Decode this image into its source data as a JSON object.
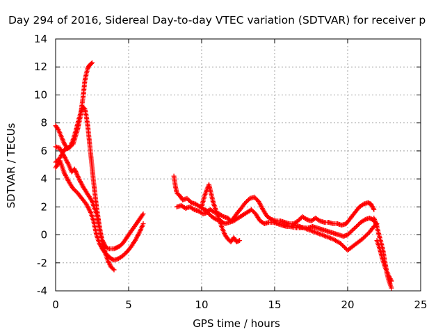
{
  "chart_data": {
    "type": "scatter",
    "title": "Day 294 of 2016, Sidereal Day-to-day VTEC variation (SDTVAR) for receiver p",
    "xlabel": "GPS time / hours",
    "ylabel": "SDTVAR / TECUs",
    "xlim": [
      0,
      25
    ],
    "ylim": [
      -4,
      14
    ],
    "xticks": [
      "0",
      "5",
      "10",
      "15",
      "20",
      "25"
    ],
    "yticks": [
      "-4",
      "-2",
      "0",
      "2",
      "4",
      "6",
      "8",
      "10",
      "12",
      "14"
    ],
    "grid": true,
    "legend": "none",
    "marker": "plus",
    "color": "#ff0000",
    "series": [
      {
        "x": [
          0.0,
          0.3,
          0.6,
          0.9,
          1.2,
          1.5,
          1.7,
          1.9,
          2.0,
          2.1,
          2.2,
          2.3,
          2.4,
          2.5
        ],
        "y": [
          5.2,
          5.5,
          6.1,
          6.2,
          6.5,
          7.5,
          8.5,
          10.0,
          11.0,
          11.5,
          11.9,
          12.1,
          12.2,
          12.3
        ]
      },
      {
        "x": [
          0.0,
          0.2,
          0.4,
          0.6,
          0.8,
          1.0,
          1.2,
          1.4,
          1.6,
          1.8,
          1.9,
          2.0,
          2.1,
          2.2,
          2.3,
          2.4,
          2.5,
          2.6,
          2.7,
          2.8,
          2.9,
          3.0,
          3.1,
          3.2,
          3.4,
          3.6,
          3.8,
          4.0,
          4.2,
          4.4,
          4.6,
          4.8,
          5.0,
          5.2,
          5.4,
          5.6,
          5.8,
          6.0
        ],
        "y": [
          7.8,
          7.5,
          7.0,
          6.5,
          6.2,
          6.3,
          6.8,
          7.5,
          8.3,
          9.0,
          9.1,
          9.0,
          8.5,
          7.8,
          6.8,
          5.8,
          4.8,
          3.8,
          2.9,
          2.0,
          1.3,
          0.6,
          0.0,
          -0.4,
          -0.8,
          -1.0,
          -1.0,
          -1.0,
          -0.9,
          -0.8,
          -0.6,
          -0.3,
          0.0,
          0.3,
          0.6,
          0.9,
          1.2,
          1.5
        ]
      },
      {
        "x": [
          0.0,
          0.3,
          0.6,
          0.9,
          1.1,
          1.3,
          1.6,
          1.9,
          2.2,
          2.5,
          2.8,
          3.0,
          3.2,
          3.4,
          3.6,
          3.8,
          4.0
        ],
        "y": [
          6.3,
          6.2,
          5.6,
          5.0,
          4.5,
          4.7,
          4.0,
          3.4,
          2.9,
          2.4,
          1.5,
          0.5,
          -0.5,
          -1.3,
          -1.9,
          -2.3,
          -2.5
        ]
      },
      {
        "x": [
          0.0,
          0.3,
          0.6,
          0.9,
          1.2,
          1.5,
          1.8,
          2.1,
          2.4,
          2.6,
          2.8,
          3.0,
          3.2,
          3.4,
          3.6,
          3.8,
          4.0,
          4.3,
          4.6,
          4.9,
          5.2,
          5.5,
          5.8,
          6.0
        ],
        "y": [
          4.8,
          5.3,
          4.4,
          3.8,
          3.3,
          3.0,
          2.6,
          2.2,
          1.6,
          1.0,
          0.0,
          -0.6,
          -1.0,
          -1.3,
          -1.5,
          -1.7,
          -1.8,
          -1.7,
          -1.5,
          -1.2,
          -0.8,
          -0.3,
          0.3,
          0.8
        ]
      },
      {
        "x": [
          8.1,
          8.2,
          8.3,
          8.5,
          8.7,
          9.0,
          9.3,
          9.6,
          9.9,
          10.2,
          10.4,
          10.6,
          10.9,
          11.2,
          11.5,
          11.8,
          12.0,
          12.2,
          12.4,
          12.7,
          13.0,
          13.3,
          13.6,
          13.9,
          14.2,
          14.5,
          14.8,
          15.1,
          15.4,
          15.7,
          16.0,
          16.3,
          16.6,
          16.9,
          17.2,
          17.5,
          17.8,
          18.1,
          18.4,
          18.7,
          19.0,
          19.3,
          19.6,
          19.9,
          20.2,
          20.5,
          20.8,
          21.1,
          21.4,
          21.6,
          21.8
        ],
        "y": [
          4.2,
          3.5,
          3.0,
          2.8,
          2.5,
          2.6,
          2.3,
          2.2,
          2.0,
          1.8,
          1.7,
          1.8,
          1.6,
          1.5,
          1.3,
          1.2,
          1.0,
          1.2,
          1.5,
          1.9,
          2.3,
          2.6,
          2.7,
          2.4,
          1.8,
          1.3,
          1.1,
          1.0,
          1.0,
          0.9,
          0.8,
          0.8,
          1.0,
          1.3,
          1.1,
          1.0,
          1.2,
          1.0,
          0.9,
          0.9,
          0.8,
          0.8,
          0.7,
          0.8,
          1.2,
          1.6,
          2.0,
          2.2,
          2.3,
          2.2,
          1.8
        ]
      },
      {
        "x": [
          8.3,
          8.6,
          8.9,
          9.2,
          9.5,
          9.8,
          10.1,
          10.4,
          10.7,
          11.0,
          11.3,
          11.6,
          11.9,
          12.2,
          12.5,
          12.8,
          13.1,
          13.4,
          13.7,
          14.0,
          14.3,
          14.6,
          14.9,
          15.2,
          15.5,
          15.8,
          16.1,
          16.4,
          16.7,
          17.0,
          17.3,
          17.6,
          17.9,
          18.2,
          18.5,
          18.8,
          19.1,
          19.4,
          19.7,
          20.0,
          20.3,
          20.6,
          20.9,
          21.2,
          21.5,
          21.7,
          21.9,
          22.0
        ],
        "y": [
          2.0,
          2.1,
          1.9,
          2.0,
          1.8,
          1.7,
          1.5,
          1.6,
          1.3,
          1.1,
          1.0,
          0.8,
          0.9,
          1.0,
          1.2,
          1.4,
          1.6,
          1.8,
          1.5,
          1.0,
          0.8,
          0.9,
          0.9,
          0.8,
          0.7,
          0.6,
          0.6,
          0.7,
          0.6,
          0.5,
          0.5,
          0.6,
          0.5,
          0.4,
          0.3,
          0.2,
          0.1,
          0.0,
          -0.1,
          0.0,
          0.3,
          0.6,
          0.9,
          1.1,
          1.2,
          1.1,
          0.9,
          0.7
        ]
      },
      {
        "x": [
          10.0,
          10.2,
          10.5,
          10.8,
          11.1,
          11.4,
          11.6,
          11.8,
          12.0,
          12.2,
          12.4,
          12.6
        ],
        "y": [
          2.0,
          2.8,
          3.6,
          2.3,
          1.4,
          0.5,
          0.0,
          -0.3,
          -0.5,
          -0.2,
          -0.5,
          -0.4
        ]
      },
      {
        "x": [
          15.5,
          16.0,
          16.5,
          17.0,
          17.5,
          18.0,
          18.5,
          19.0,
          19.5,
          20.0,
          20.5,
          21.0,
          21.5,
          21.8,
          22.0
        ],
        "y": [
          0.7,
          0.6,
          0.5,
          0.5,
          0.3,
          0.1,
          -0.1,
          -0.3,
          -0.6,
          -1.1,
          -0.7,
          -0.3,
          0.2,
          0.6,
          0.8
        ]
      },
      {
        "x": [
          21.8,
          22.0,
          22.2,
          22.4,
          22.5,
          22.6,
          22.7,
          22.8,
          22.9,
          23.0
        ],
        "y": [
          1.2,
          0.6,
          -0.2,
          -1.0,
          -1.6,
          -2.2,
          -2.8,
          -3.2,
          -3.5,
          -3.8
        ]
      },
      {
        "x": [
          22.0,
          22.2,
          22.4,
          22.6,
          22.8,
          23.0
        ],
        "y": [
          -0.4,
          -1.0,
          -1.8,
          -2.4,
          -2.9,
          -3.3
        ]
      }
    ]
  }
}
